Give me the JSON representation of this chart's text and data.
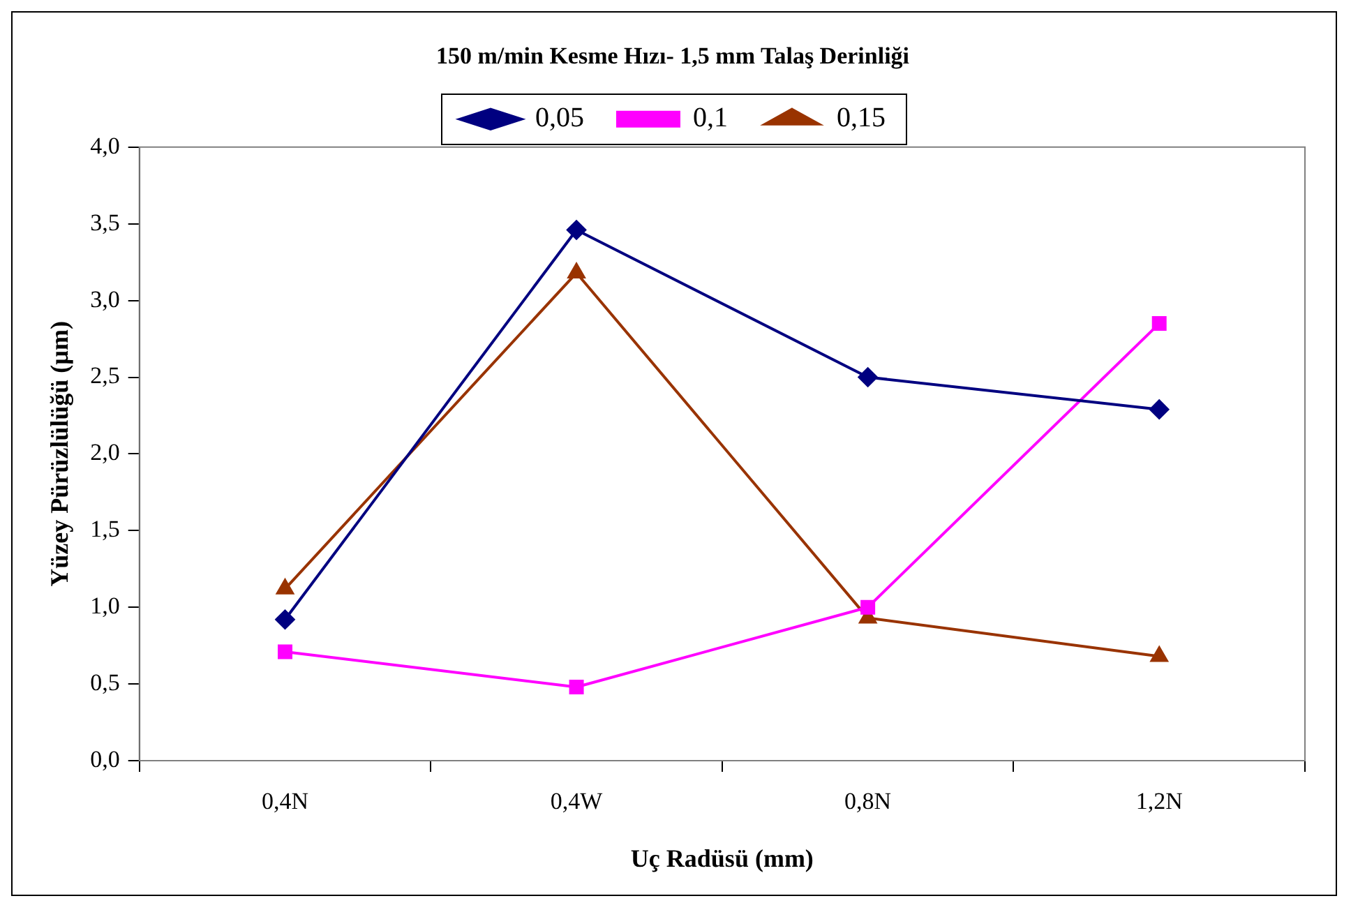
{
  "chart_data": {
    "type": "line",
    "title": "150 m/min Kesme Hızı- 1,5 mm Talaş Derinliği",
    "xlabel": "Uç Radüsü (mm)",
    "ylabel": "Yüzey Pürüzlülüğü (µm)",
    "categories": [
      "0,4N",
      "0,4W",
      "0,8N",
      "1,2N"
    ],
    "series": [
      {
        "name": "0,05",
        "color": "#000080",
        "marker": "diamond",
        "values": [
          0.92,
          3.46,
          2.5,
          2.29
        ]
      },
      {
        "name": "0,1",
        "color": "#ff00ff",
        "marker": "square",
        "values": [
          0.71,
          0.48,
          1.0,
          2.85
        ]
      },
      {
        "name": "0,15",
        "color": "#993300",
        "marker": "triangle",
        "values": [
          1.12,
          3.18,
          0.93,
          0.68
        ]
      }
    ],
    "ylim": [
      0,
      4
    ],
    "yticks": [
      {
        "value": 0,
        "label": "0,0"
      },
      {
        "value": 0.5,
        "label": "0,5"
      },
      {
        "value": 1,
        "label": "1,0"
      },
      {
        "value": 1.5,
        "label": "1,5"
      },
      {
        "value": 2,
        "label": "2,0"
      },
      {
        "value": 2.5,
        "label": "2,5"
      },
      {
        "value": 3,
        "label": "3,0"
      },
      {
        "value": 3.5,
        "label": "3,5"
      },
      {
        "value": 4,
        "label": "4,0"
      }
    ],
    "grid": false,
    "legend": "top",
    "line_style": "solid"
  }
}
